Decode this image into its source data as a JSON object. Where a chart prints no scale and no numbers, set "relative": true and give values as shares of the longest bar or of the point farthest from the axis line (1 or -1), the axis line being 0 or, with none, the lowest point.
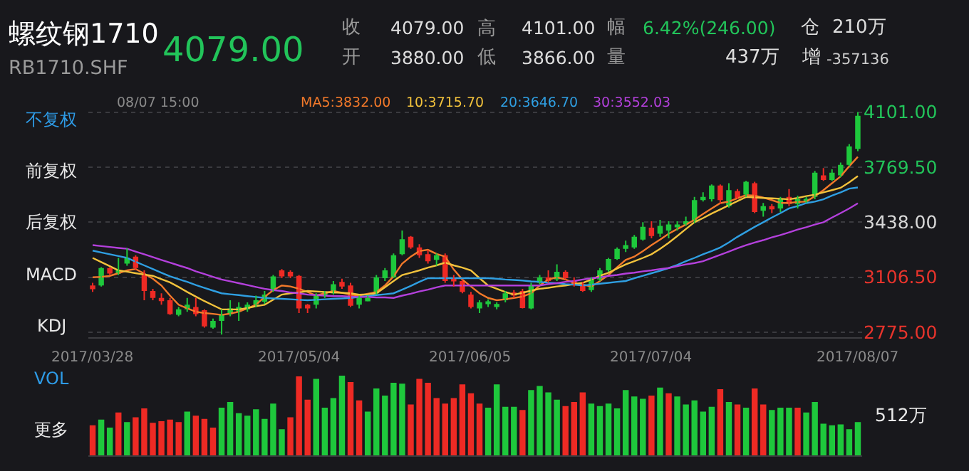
{
  "chart_data": [
    {
      "type": "candlestick",
      "title": "螺纹钢1710",
      "subtitle": "RB1710.SHF",
      "categories": [
        "2017/03/28",
        null,
        null,
        null,
        null,
        null,
        null,
        null,
        null,
        null,
        null,
        null,
        null,
        null,
        null,
        null,
        null,
        null,
        null,
        null,
        null,
        null,
        null,
        null,
        "2017/05/04",
        null,
        null,
        null,
        null,
        null,
        null,
        null,
        null,
        null,
        null,
        null,
        null,
        null,
        null,
        null,
        null,
        null,
        null,
        null,
        "2017/06/05",
        null,
        null,
        null,
        null,
        null,
        null,
        null,
        null,
        null,
        null,
        null,
        null,
        null,
        null,
        null,
        null,
        null,
        null,
        null,
        null,
        "2017/07/04",
        null,
        null,
        null,
        null,
        null,
        null,
        null,
        null,
        null,
        null,
        null,
        null,
        null,
        null,
        null,
        null,
        null,
        null,
        null,
        null,
        null,
        null,
        null,
        "2017/08/07"
      ],
      "ohlc": [
        [
          3057,
          3073,
          3018,
          3035
        ],
        [
          3057,
          3167,
          3051,
          3162
        ],
        [
          3162,
          3167,
          3120,
          3129
        ],
        [
          3129,
          3223,
          3120,
          3148
        ],
        [
          3189,
          3281,
          3176,
          3223
        ],
        [
          3231,
          3239,
          3148,
          3162
        ],
        [
          3120,
          3148,
          2968,
          3024
        ],
        [
          3024,
          3037,
          2968,
          2982
        ],
        [
          2982,
          3010,
          2941,
          2963
        ],
        [
          2968,
          2982,
          2880,
          2885
        ],
        [
          2880,
          2927,
          2872,
          2913
        ],
        [
          2913,
          2982,
          2899,
          2941
        ],
        [
          2927,
          2982,
          2872,
          2885
        ],
        [
          2908,
          2913,
          2803,
          2811
        ],
        [
          2803,
          2858,
          2797,
          2844
        ],
        [
          2844,
          2913,
          2761,
          2880
        ],
        [
          2885,
          2968,
          2872,
          2919
        ],
        [
          2899,
          2955,
          2844,
          2927
        ],
        [
          2913,
          2955,
          2899,
          2941
        ],
        [
          2941,
          2996,
          2927,
          2968
        ],
        [
          2960,
          3024,
          2946,
          3002
        ],
        [
          3024,
          3120,
          3018,
          3112
        ],
        [
          3148,
          3156,
          3101,
          3112
        ],
        [
          3140,
          3148,
          3101,
          3112
        ],
        [
          3115,
          3120,
          2891,
          2919
        ],
        [
          2941,
          2946,
          2891,
          2919
        ],
        [
          2941,
          3010,
          2919,
          2996
        ],
        [
          2996,
          3024,
          2982,
          3010
        ],
        [
          3010,
          3084,
          3002,
          3065
        ],
        [
          3079,
          3098,
          3037,
          3051
        ],
        [
          3057,
          3073,
          2927,
          2935
        ],
        [
          2941,
          2996,
          2919,
          2982
        ],
        [
          2968,
          2996,
          2963,
          2982
        ],
        [
          3010,
          3120,
          3002,
          3106
        ],
        [
          3101,
          3162,
          3084,
          3148
        ],
        [
          3106,
          3250,
          3101,
          3239
        ],
        [
          3245,
          3388,
          3239,
          3336
        ],
        [
          3350,
          3355,
          3278,
          3286
        ],
        [
          3286,
          3305,
          3223,
          3239
        ],
        [
          3245,
          3272,
          3189,
          3203
        ],
        [
          3211,
          3250,
          3176,
          3239
        ],
        [
          3239,
          3250,
          3073,
          3084
        ],
        [
          3101,
          3120,
          3051,
          3084
        ],
        [
          3084,
          3093,
          3010,
          3018
        ],
        [
          3002,
          3018,
          2919,
          2927
        ],
        [
          2919,
          2968,
          2891,
          2955
        ],
        [
          2946,
          2974,
          2927,
          2957
        ],
        [
          2935,
          2955,
          2913,
          2946
        ],
        [
          2968,
          3024,
          2955,
          3010
        ],
        [
          3015,
          3029,
          2982,
          2996
        ],
        [
          3024,
          3037,
          2919,
          2921
        ],
        [
          2919,
          3073,
          2913,
          3057
        ],
        [
          3073,
          3120,
          3065,
          3106
        ],
        [
          3106,
          3148,
          3073,
          3084
        ],
        [
          3093,
          3184,
          3084,
          3140
        ],
        [
          3140,
          3148,
          3093,
          3101
        ],
        [
          3084,
          3106,
          3051,
          3057
        ],
        [
          3065,
          3079,
          3018,
          3024
        ],
        [
          3029,
          3106,
          3018,
          3093
        ],
        [
          3093,
          3162,
          3084,
          3148
        ],
        [
          3148,
          3223,
          3140,
          3217
        ],
        [
          3217,
          3286,
          3211,
          3278
        ],
        [
          3278,
          3327,
          3258,
          3300
        ],
        [
          3286,
          3361,
          3278,
          3350
        ],
        [
          3333,
          3438,
          3327,
          3410
        ],
        [
          3405,
          3444,
          3341,
          3355
        ],
        [
          3369,
          3452,
          3350,
          3416
        ],
        [
          3388,
          3444,
          3341,
          3424
        ],
        [
          3410,
          3444,
          3388,
          3424
        ],
        [
          3424,
          3471,
          3416,
          3444
        ],
        [
          3444,
          3590,
          3432,
          3571
        ],
        [
          3571,
          3618,
          3562,
          3590
        ],
        [
          3576,
          3665,
          3562,
          3659
        ],
        [
          3659,
          3665,
          3548,
          3571
        ],
        [
          3535,
          3673,
          3526,
          3631
        ],
        [
          3626,
          3637,
          3576,
          3584
        ],
        [
          3604,
          3687,
          3590,
          3681
        ],
        [
          3673,
          3681,
          3493,
          3499
        ],
        [
          3507,
          3554,
          3471,
          3535
        ],
        [
          3535,
          3548,
          3493,
          3515
        ],
        [
          3521,
          3590,
          3499,
          3576
        ],
        [
          3590,
          3637,
          3535,
          3548
        ],
        [
          3548,
          3598,
          3521,
          3576
        ],
        [
          3562,
          3590,
          3554,
          3576
        ],
        [
          3590,
          3747,
          3576,
          3736
        ],
        [
          3720,
          3764,
          3687,
          3692
        ],
        [
          3692,
          3756,
          3687,
          3736
        ],
        [
          3720,
          3797,
          3709,
          3783
        ],
        [
          3783,
          3908,
          3775,
          3894
        ],
        [
          3880,
          4101,
          3866,
          4079
        ]
      ],
      "colors": [
        "#ee2a24",
        "#1ec83c",
        "#ee2a24",
        "#1ec83c",
        "#1ec83c",
        "#ee2a24",
        "#ee2a24",
        "#ee2a24",
        "#ee2a24",
        "#ee2a24",
        "#1ec83c",
        "#1ec83c",
        "#ee2a24",
        "#ee2a24",
        "#1ec83c",
        "#1ec83c",
        "#1ec83c",
        "#1ec83c",
        "#1ec83c",
        "#1ec83c",
        "#1ec83c",
        "#1ec83c",
        "#ee2a24",
        "#ee2a24",
        "#ee2a24",
        "#ee2a24",
        "#1ec83c",
        "#1ec83c",
        "#1ec83c",
        "#ee2a24",
        "#ee2a24",
        "#1ec83c",
        "#1ec83c",
        "#1ec83c",
        "#1ec83c",
        "#1ec83c",
        "#1ec83c",
        "#ee2a24",
        "#ee2a24",
        "#ee2a24",
        "#1ec83c",
        "#ee2a24",
        "#ee2a24",
        "#ee2a24",
        "#ee2a24",
        "#1ec83c",
        "#1ec83c",
        "#1ec83c",
        "#1ec83c",
        "#ee2a24",
        "#ee2a24",
        "#1ec83c",
        "#1ec83c",
        "#ee2a24",
        "#1ec83c",
        "#ee2a24",
        "#ee2a24",
        "#ee2a24",
        "#1ec83c",
        "#1ec83c",
        "#1ec83c",
        "#1ec83c",
        "#1ec83c",
        "#1ec83c",
        "#1ec83c",
        "#ee2a24",
        "#1ec83c",
        "#1ec83c",
        "#1ec83c",
        "#1ec83c",
        "#1ec83c",
        "#1ec83c",
        "#1ec83c",
        "#ee2a24",
        "#1ec83c",
        "#ee2a24",
        "#1ec83c",
        "#ee2a24",
        "#1ec83c",
        "#ee2a24",
        "#1ec83c",
        "#ee2a24",
        "#1ec83c",
        "#1ec83c",
        "#1ec83c",
        "#ee2a24",
        "#1ec83c",
        "#1ec83c",
        "#1ec83c",
        "#1ec83c"
      ],
      "series": [
        {
          "name": "MA5:3832.00",
          "type": "line",
          "color": "#f2792a",
          "values": [
            3106,
            3109,
            3115,
            3131,
            3148,
            3156,
            3129,
            3098,
            3057,
            2996,
            2941,
            2919,
            2899,
            2891,
            2886,
            2880,
            2888,
            2899,
            2919,
            2941,
            2988,
            3029,
            3057,
            3051,
            3037,
            3018,
            2996,
            3010,
            3024,
            3013,
            3002,
            2996,
            3007,
            3018,
            3057,
            3112,
            3189,
            3231,
            3264,
            3272,
            3247,
            3231,
            3153,
            3093,
            3051,
            3010,
            2982,
            2968,
            2974,
            2982,
            2990,
            3010,
            3057,
            3093,
            3106,
            3093,
            3073,
            3062,
            3051,
            3084,
            3120,
            3167,
            3211,
            3231,
            3264,
            3300,
            3333,
            3369,
            3397,
            3424,
            3452,
            3488,
            3521,
            3553,
            3562,
            3582,
            3601,
            3598,
            3587,
            3571,
            3554,
            3554,
            3560,
            3562,
            3595,
            3631,
            3673,
            3714,
            3775,
            3832
          ]
        },
        {
          "name": "10:3715.70",
          "type": "line",
          "color": "#f2c23c",
          "values": [
            3223,
            3198,
            3173,
            3148,
            3140,
            3131,
            3123,
            3115,
            3095,
            3076,
            3048,
            3018,
            2990,
            2963,
            2938,
            2913,
            2913,
            2913,
            2921,
            2932,
            2941,
            2971,
            3002,
            3010,
            3015,
            3024,
            3021,
            3018,
            3015,
            3013,
            3010,
            3002,
            3004,
            3010,
            3046,
            3084,
            3120,
            3134,
            3148,
            3165,
            3178,
            3195,
            3178,
            3165,
            3148,
            3101,
            3057,
            3037,
            3018,
            3002,
            3013,
            3026,
            3037,
            3043,
            3051,
            3057,
            3065,
            3073,
            3093,
            3115,
            3134,
            3159,
            3184,
            3203,
            3223,
            3245,
            3278,
            3314,
            3355,
            3397,
            3438,
            3463,
            3490,
            3515,
            3540,
            3565,
            3590,
            3587,
            3584,
            3582,
            3579,
            3576,
            3584,
            3595,
            3604,
            3618,
            3631,
            3645,
            3678,
            3716
          ]
        },
        {
          "name": "20:3646.70",
          "type": "line",
          "color": "#2f9fe2",
          "values": [
            3267,
            3256,
            3245,
            3234,
            3223,
            3200,
            3178,
            3156,
            3134,
            3112,
            3095,
            3079,
            3060,
            3043,
            3026,
            3010,
            3004,
            2999,
            2993,
            2988,
            2982,
            2979,
            2977,
            2974,
            2971,
            2968,
            2971,
            2974,
            2977,
            2979,
            2982,
            2988,
            2993,
            2999,
            3004,
            3010,
            3032,
            3054,
            3079,
            3101,
            3101,
            3101,
            3101,
            3101,
            3101,
            3101,
            3101,
            3098,
            3093,
            3090,
            3087,
            3082,
            3079,
            3073,
            3071,
            3065,
            3062,
            3057,
            3062,
            3068,
            3073,
            3079,
            3084,
            3101,
            3115,
            3131,
            3145,
            3162,
            3181,
            3203,
            3223,
            3245,
            3264,
            3286,
            3316,
            3350,
            3380,
            3410,
            3438,
            3466,
            3493,
            3521,
            3535,
            3553,
            3562,
            3576,
            3598,
            3618,
            3640,
            3647
          ]
        },
        {
          "name": "30:3552.03",
          "type": "line",
          "color": "#b440dc",
          "values": [
            3300,
            3294,
            3289,
            3283,
            3278,
            3261,
            3245,
            3228,
            3211,
            3195,
            3178,
            3162,
            3142,
            3126,
            3109,
            3093,
            3082,
            3071,
            3060,
            3048,
            3037,
            3029,
            3024,
            3015,
            3010,
            3002,
            2999,
            2996,
            2993,
            2993,
            2990,
            2988,
            2988,
            2985,
            2985,
            2982,
            2996,
            3007,
            3021,
            3032,
            3046,
            3057,
            3057,
            3057,
            3057,
            3057,
            3057,
            3057,
            3057,
            3057,
            3057,
            3057,
            3057,
            3065,
            3071,
            3079,
            3084,
            3093,
            3101,
            3106,
            3115,
            3120,
            3129,
            3134,
            3142,
            3148,
            3156,
            3162,
            3173,
            3184,
            3192,
            3203,
            3223,
            3242,
            3261,
            3281,
            3300,
            3316,
            3330,
            3347,
            3361,
            3377,
            3394,
            3408,
            3424,
            3438,
            3466,
            3493,
            3521,
            3552
          ]
        }
      ],
      "ylim": [
        2747,
        4118
      ],
      "yticks": [
        {
          "value": 2775,
          "label": "2775.00"
        },
        {
          "value": 3106.5,
          "label": "3106.50"
        },
        {
          "value": 3438,
          "label": "3438.00"
        },
        {
          "value": 3769.5,
          "label": "3769.50"
        },
        {
          "value": 4101,
          "label": "4101.00"
        }
      ],
      "grid": "y",
      "marker": "none",
      "annotations": [
        "4079.00",
        "收",
        "4079.00",
        "高",
        "4101.00",
        "幅",
        "6.42%(246.00)",
        "仓",
        "210万",
        "开",
        "3880.00",
        "低",
        "3866.00",
        "量",
        "437万",
        "增",
        "-357136",
        "08/07 15:00",
        "不复权",
        "前复权",
        "后复权",
        "MACD",
        "KDJ",
        "VOL",
        "更多"
      ]
    },
    {
      "type": "bar",
      "relative": true,
      "tick_labels": false,
      "categories": [
        "2017/03/28",
        null,
        null,
        null,
        null,
        null,
        null,
        null,
        null,
        null,
        null,
        null,
        null,
        null,
        null,
        null,
        null,
        null,
        null,
        null,
        null,
        null,
        null,
        null,
        "2017/05/04",
        null,
        null,
        null,
        null,
        null,
        null,
        null,
        null,
        null,
        null,
        null,
        null,
        null,
        null,
        null,
        null,
        null,
        null,
        null,
        "2017/06/05",
        null,
        null,
        null,
        null,
        null,
        null,
        null,
        null,
        null,
        null,
        null,
        null,
        null,
        null,
        null,
        null,
        null,
        null,
        null,
        null,
        "2017/07/04",
        null,
        null,
        null,
        null,
        null,
        null,
        null,
        null,
        null,
        null,
        null,
        null,
        null,
        null,
        null,
        null,
        null,
        null,
        null,
        null,
        null,
        null,
        null,
        "2017/08/07"
      ],
      "values": [
        0.38,
        0.45,
        0.35,
        0.54,
        0.42,
        0.48,
        0.59,
        0.41,
        0.43,
        0.45,
        0.42,
        0.55,
        0.5,
        0.46,
        0.35,
        0.6,
        0.67,
        0.53,
        0.5,
        0.58,
        0.46,
        0.65,
        0.33,
        0.48,
        0.99,
        0.7,
        0.96,
        0.6,
        0.72,
        1,
        0.92,
        0.69,
        0.55,
        0.84,
        0.75,
        0.91,
        0.9,
        0.64,
        0.96,
        0.91,
        0.72,
        0.65,
        0.72,
        0.89,
        0.78,
        0.65,
        0.6,
        0.89,
        0.61,
        0.61,
        0.57,
        0.82,
        0.87,
        0.79,
        0.7,
        0.62,
        0.67,
        0.79,
        0.65,
        0.62,
        0.65,
        0.59,
        0.82,
        0.74,
        0.71,
        0.75,
        0.85,
        0.78,
        0.74,
        0.64,
        0.69,
        0.55,
        0.61,
        0.83,
        0.67,
        0.64,
        0.6,
        0.84,
        0.64,
        0.57,
        0.6,
        0.6,
        0.6,
        0.54,
        0.67,
        0.4,
        0.38,
        0.39,
        0.33,
        0.42
      ],
      "colors": [
        "#ee2a24",
        "#1ec83c",
        "#1ec83c",
        "#ee2a24",
        "#1ec83c",
        "#ee2a24",
        "#ee2a24",
        "#ee2a24",
        "#ee2a24",
        "#ee2a24",
        "#ee2a24",
        "#1ec83c",
        "#ee2a24",
        "#ee2a24",
        "#ee2a24",
        "#1ec83c",
        "#1ec83c",
        "#1ec83c",
        "#1ec83c",
        "#1ec83c",
        "#1ec83c",
        "#1ec83c",
        "#1ec83c",
        "#ee2a24",
        "#ee2a24",
        "#ee2a24",
        "#1ec83c",
        "#1ec83c",
        "#1ec83c",
        "#1ec83c",
        "#ee2a24",
        "#ee2a24",
        "#1ec83c",
        "#1ec83c",
        "#1ec83c",
        "#1ec83c",
        "#1ec83c",
        "#ee2a24",
        "#ee2a24",
        "#ee2a24",
        "#ee2a24",
        "#ee2a24",
        "#ee2a24",
        "#ee2a24",
        "#ee2a24",
        "#ee2a24",
        "#1ec83c",
        "#1ec83c",
        "#1ec83c",
        "#1ec83c",
        "#ee2a24",
        "#1ec83c",
        "#1ec83c",
        "#1ec83c",
        "#1ec83c",
        "#ee2a24",
        "#ee2a24",
        "#ee2a24",
        "#1ec83c",
        "#1ec83c",
        "#1ec83c",
        "#1ec83c",
        "#1ec83c",
        "#1ec83c",
        "#1ec83c",
        "#ee2a24",
        "#1ec83c",
        "#ee2a24",
        "#1ec83c",
        "#1ec83c",
        "#1ec83c",
        "#1ec83c",
        "#1ec83c",
        "#ee2a24",
        "#1ec83c",
        "#ee2a24",
        "#1ec83c",
        "#ee2a24",
        "#ee2a24",
        "#1ec83c",
        "#1ec83c",
        "#1ec83c",
        "#ee2a24",
        "#1ec83c",
        "#1ec83c",
        "#1ec83c",
        "#1ec83c",
        "#1ec83c",
        "#1ec83c",
        "#1ec83c"
      ],
      "annotations": [
        "512万"
      ]
    }
  ]
}
